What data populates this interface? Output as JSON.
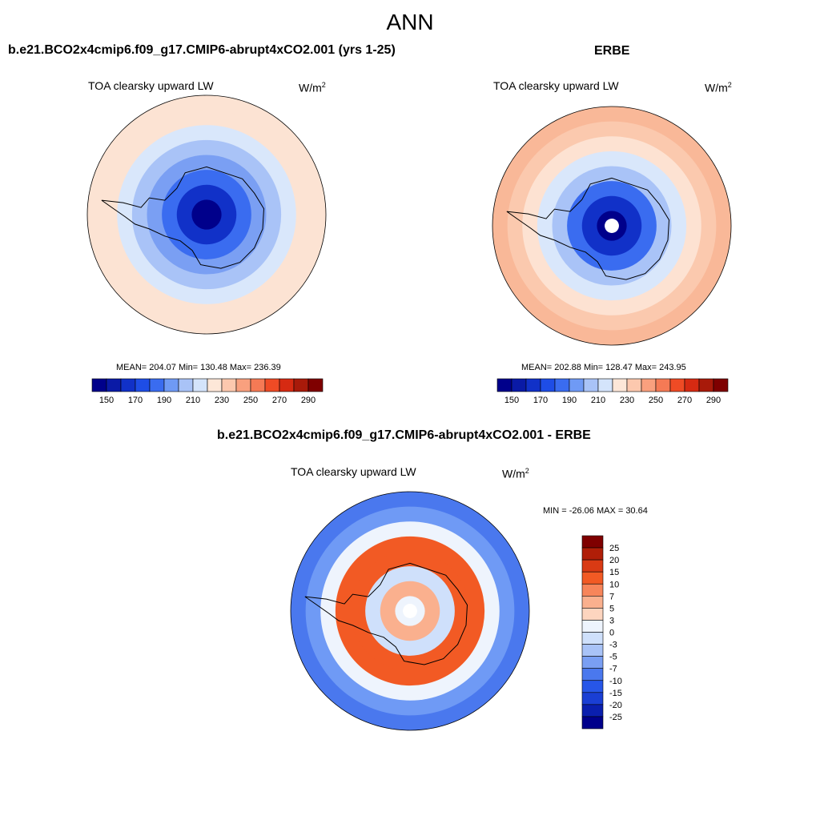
{
  "title": "ANN",
  "panels": [
    {
      "title": "b.e21.BCO2x4cmip6.f09_g17.CMIP6-abrupt4xCO2.001 (yrs 1-25)",
      "variable": "TOA clearsky upward LW",
      "units": "W/m",
      "units_sup": "2",
      "stats": "MEAN= 204.07  Min= 130.48  Max= 236.39",
      "colorbar": {
        "colors": [
          "#00008b",
          "#0a1aa6",
          "#1131c8",
          "#1e4de6",
          "#3a6cf0",
          "#6f9af5",
          "#a9c3f7",
          "#d4e4fb",
          "#fde7d8",
          "#fcc8ae",
          "#f9a07e",
          "#f57a55",
          "#ef4b25",
          "#d62a12",
          "#a81a0a",
          "#7f0000"
        ],
        "labels": [
          "150",
          "170",
          "190",
          "210",
          "230",
          "250",
          "270",
          "290"
        ]
      },
      "map": {
        "rings": [
          "#fce3d3",
          "#fce3d3",
          "#d9e7fb",
          "#a9c3f7",
          "#7a9ff3",
          "#3a6cf0",
          "#1131c8",
          "#00008b"
        ],
        "pole_hole": false
      }
    },
    {
      "title": "ERBE",
      "variable": "TOA clearsky upward LW",
      "units": "W/m",
      "units_sup": "2",
      "stats": "MEAN= 202.88  Min= 128.47  Max= 243.95",
      "colorbar": {
        "colors": [
          "#00008b",
          "#0a1aa6",
          "#1131c8",
          "#1e4de6",
          "#3a6cf0",
          "#6f9af5",
          "#a9c3f7",
          "#d4e4fb",
          "#fde7d8",
          "#fcc8ae",
          "#f9a07e",
          "#f57a55",
          "#ef4b25",
          "#d62a12",
          "#a81a0a",
          "#7f0000"
        ],
        "labels": [
          "150",
          "170",
          "190",
          "210",
          "230",
          "250",
          "270",
          "290"
        ]
      },
      "map": {
        "rings": [
          "#f9b898",
          "#fbc9ae",
          "#fde2d2",
          "#d9e7fb",
          "#a9c3f7",
          "#3a6cf0",
          "#1131c8",
          "#00008b"
        ],
        "pole_hole": true
      }
    }
  ],
  "diff_panel": {
    "title": "b.e21.BCO2x4cmip6.f09_g17.CMIP6-abrupt4xCO2.001 - ERBE",
    "variable": "TOA clearsky upward LW",
    "units": "W/m",
    "units_sup": "2",
    "stats": "MIN = -26.06 MAX =  30.64",
    "colorbar": {
      "colors": [
        "#7f0000",
        "#b01e08",
        "#d93a14",
        "#f25a24",
        "#f7855a",
        "#fab08e",
        "#fdd5bf",
        "#eef4fd",
        "#cfe0fb",
        "#a9c3f7",
        "#7a9ff3",
        "#4a78ee",
        "#2756e8",
        "#1a3fd4",
        "#0a1fae",
        "#00008b"
      ],
      "labels": [
        "25",
        "20",
        "15",
        "10",
        "7",
        "5",
        "3",
        "0",
        "-3",
        "-5",
        "-7",
        "-10",
        "-15",
        "-20",
        "-25"
      ]
    },
    "map": {
      "rings": [
        "#4a78ee",
        "#6f9af5",
        "#eef4fd",
        "#f25a24",
        "#f25a24",
        "#cfe0fb",
        "#fab08e",
        "#eef4fd"
      ],
      "pole_hole": true
    }
  }
}
